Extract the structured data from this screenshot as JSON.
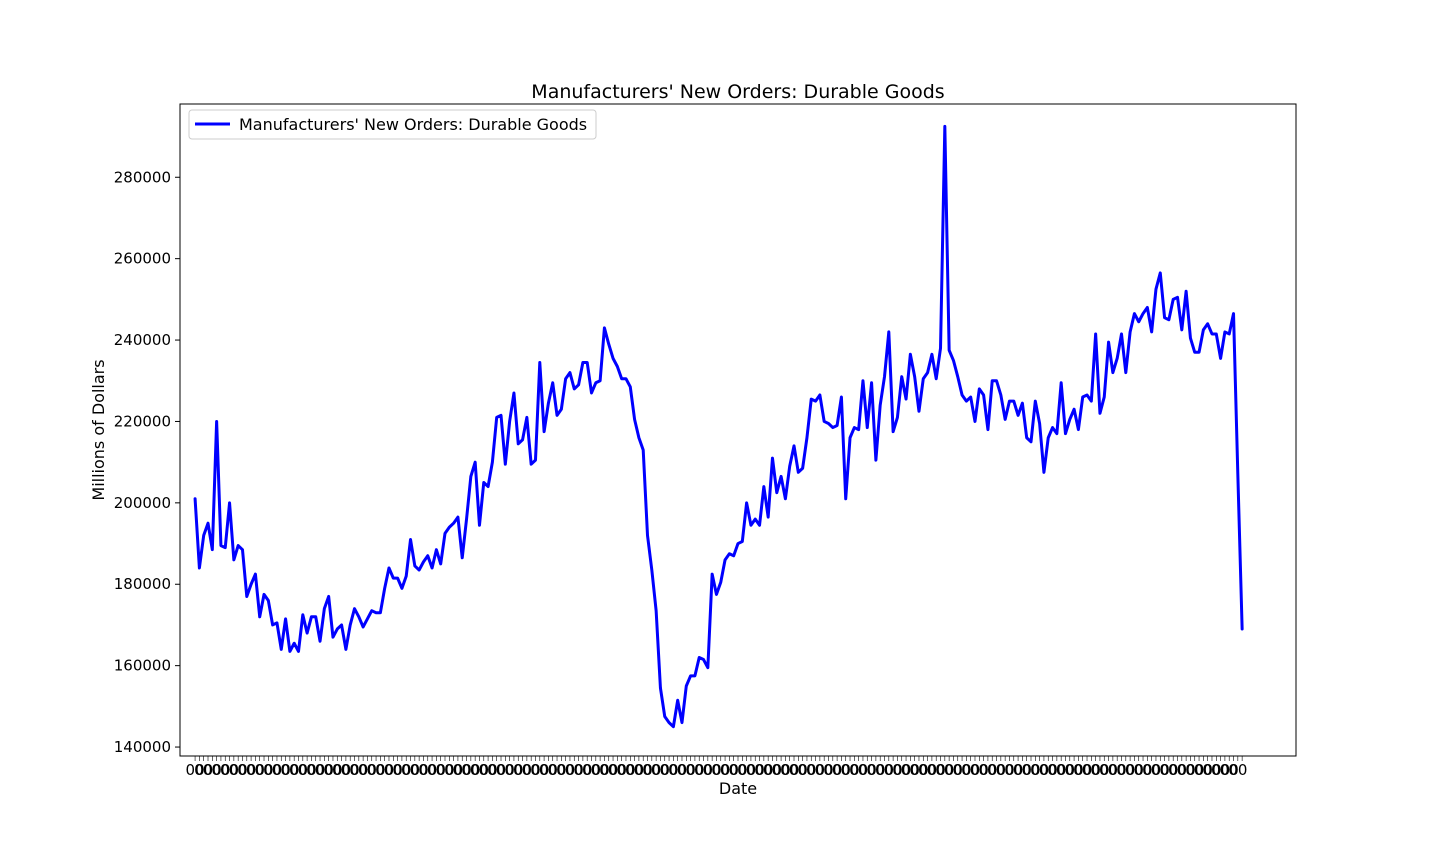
{
  "chart_data": {
    "type": "line",
    "title": "Manufacturers' New Orders: Durable Goods",
    "xlabel": "Date",
    "ylabel": "Millions of Dollars",
    "ylim": [
      137800,
      298000
    ],
    "yticks": [
      140000,
      160000,
      180000,
      200000,
      220000,
      240000,
      260000,
      280000
    ],
    "yticklabels": [
      "140000",
      "160000",
      "180000",
      "200000",
      "220000",
      "240000",
      "260000",
      "280000"
    ],
    "xlim": [
      -3.5,
      255.5
    ],
    "grid": false,
    "legend": "upper-left",
    "colors": {
      "line": "#0000ff",
      "axes": "#000000",
      "background": "#ffffff"
    },
    "series": [
      {
        "name": "Manufacturers' New Orders: Durable Goods",
        "color": "#0000ff",
        "values": [
          201000,
          184000,
          192000,
          195000,
          188500,
          220000,
          189500,
          189000,
          200000,
          186000,
          189500,
          188500,
          177000,
          180000,
          182500,
          172000,
          177500,
          176000,
          170000,
          170500,
          164000,
          171500,
          163500,
          165500,
          163500,
          172500,
          168000,
          172000,
          172000,
          166000,
          174000,
          177000,
          167000,
          169000,
          170000,
          164000,
          170000,
          174000,
          172000,
          169500,
          171500,
          173500,
          173000,
          173000,
          179000,
          184000,
          181500,
          181500,
          179000,
          182000,
          191000,
          184500,
          183500,
          185500,
          187000,
          184000,
          188500,
          185000,
          192500,
          194000,
          195000,
          196500,
          186500,
          196000,
          206500,
          210000,
          194500,
          205000,
          204000,
          210000,
          221000,
          221500,
          209500,
          220000,
          227000,
          214500,
          215500,
          221000,
          209500,
          210500,
          234500,
          217500,
          224500,
          229500,
          221500,
          223000,
          230500,
          232000,
          228000,
          229000,
          234500,
          234500,
          227000,
          229500,
          230000,
          243000,
          239000,
          235500,
          233500,
          230500,
          230500,
          228500,
          220500,
          216000,
          213000,
          192000,
          183500,
          173500,
          154500,
          147500,
          146000,
          145000,
          151500,
          146000,
          155000,
          157500,
          157500,
          162000,
          161500,
          159500,
          182500,
          177500,
          180500,
          186000,
          187500,
          187000,
          190000,
          190500,
          200000,
          194500,
          196000,
          194500,
          204000,
          196500,
          211000,
          202500,
          206500,
          201000,
          209000,
          214000,
          207500,
          208500,
          216000,
          225500,
          225000,
          226500,
          220000,
          219500,
          218500,
          219000,
          226000,
          201000,
          216000,
          218500,
          218000,
          230000,
          218500,
          229500,
          210500,
          224000,
          231000,
          242000,
          217500,
          221000,
          231000,
          225500,
          236500,
          231000,
          222500,
          230500,
          232000,
          236500,
          230500,
          238000,
          292500,
          237500,
          235000,
          231000,
          226500,
          225000,
          226000,
          220000,
          228000,
          226500,
          218000,
          230000,
          230000,
          226500,
          220500,
          225000,
          225000,
          221500,
          224500,
          216000,
          215000,
          225000,
          219500,
          207500,
          216000,
          218500,
          217000,
          229500,
          217000,
          220500,
          223000,
          218000,
          226000,
          226500,
          225000,
          241500,
          222000,
          226000,
          239500,
          232000,
          235500,
          241500,
          232000,
          242000,
          246500,
          244500,
          246500,
          248000,
          242000,
          252500,
          256500,
          245500,
          245000,
          250000,
          250500,
          242500,
          252000,
          240500,
          237000,
          237000,
          242500,
          244000,
          241500,
          241500,
          235500,
          242000,
          241500,
          246500,
          207000,
          169000
        ]
      }
    ]
  }
}
